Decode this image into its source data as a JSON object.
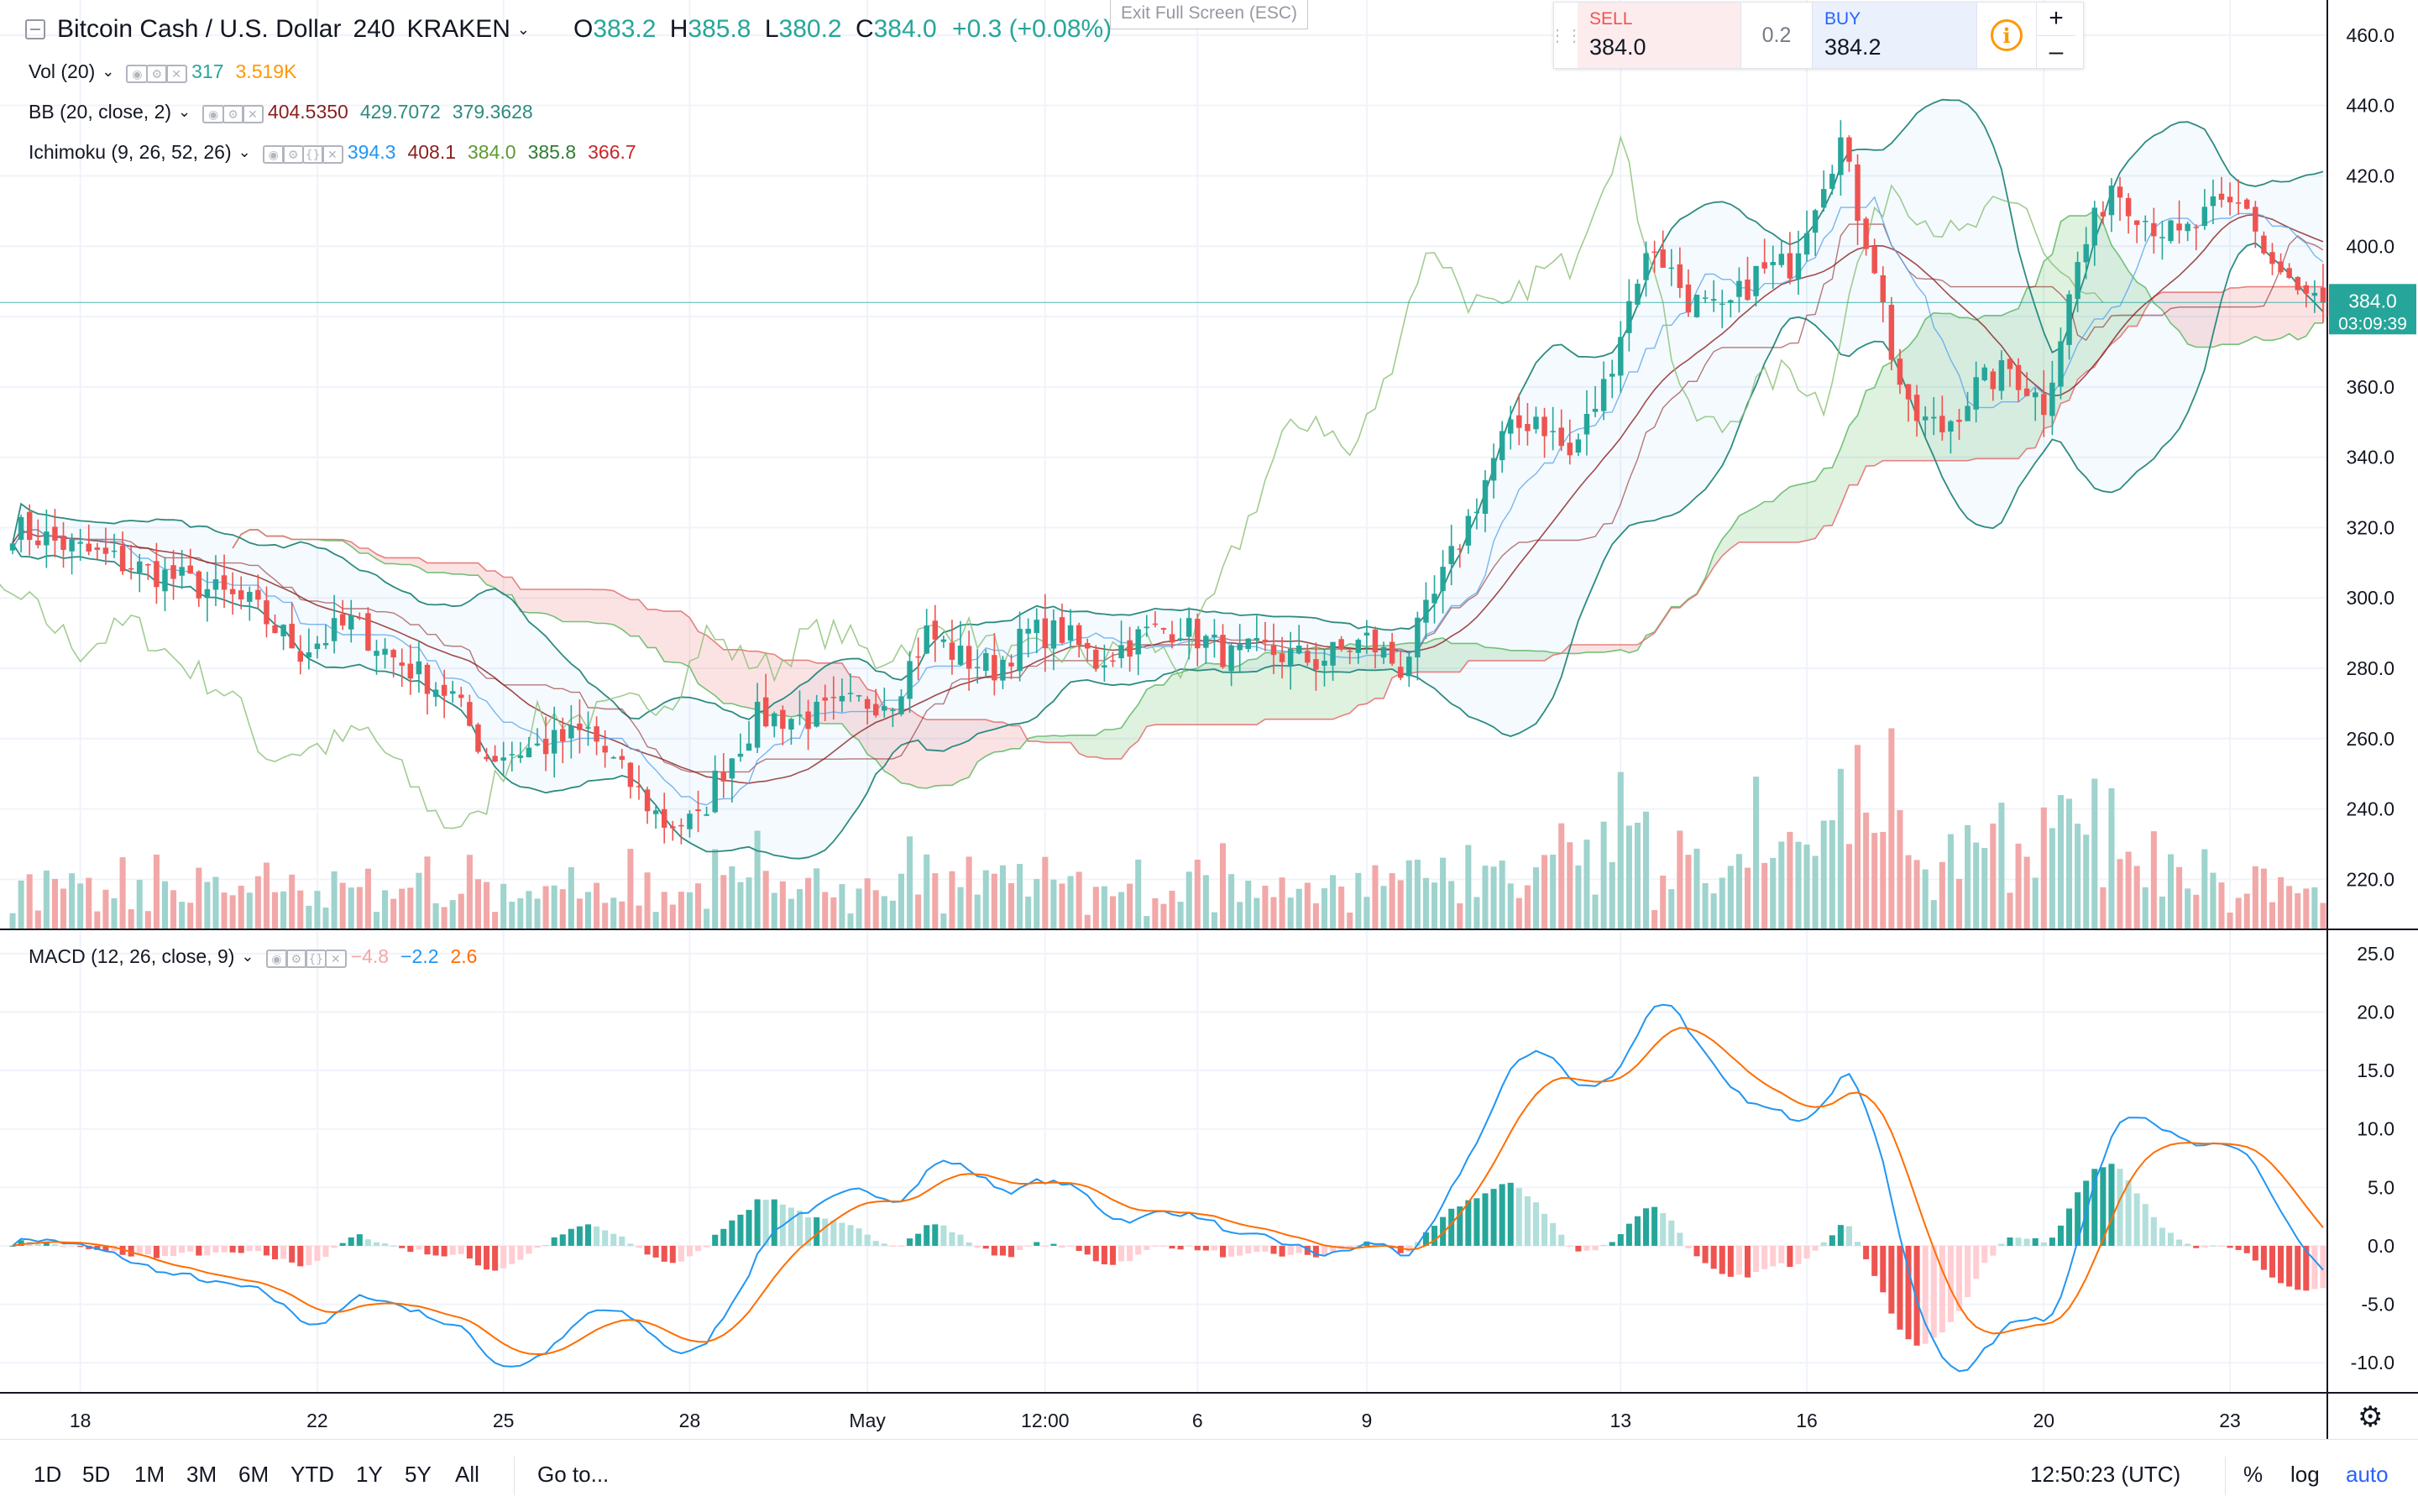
{
  "header": {
    "symbol": "Bitcoin Cash / U.S. Dollar",
    "interval": "240",
    "exchange": "KRAKEN",
    "o_label": "O",
    "o": "383.2",
    "h_label": "H",
    "h": "385.8",
    "l_label": "L",
    "l": "380.2",
    "c_label": "C",
    "c": "384.0",
    "change": "+0.3 (+0.08%)"
  },
  "tooltip": "Exit Full Screen (ESC)",
  "trade": {
    "sell_label": "SELL",
    "sell": "384.0",
    "spread": "0.2",
    "buy_label": "BUY",
    "buy": "384.2",
    "plus": "+",
    "minus": "–"
  },
  "legends": {
    "vol": {
      "name": "Vol (20)",
      "v1": "317",
      "v2": "3.519K"
    },
    "bb": {
      "name": "BB (20, close, 2)",
      "v1": "404.5350",
      "v2": "429.7072",
      "v3": "379.3628"
    },
    "ichimoku": {
      "name": "Ichimoku (9, 26, 52, 26)",
      "v1": "394.3",
      "v2": "408.1",
      "v3": "384.0",
      "v4": "385.8",
      "v5": "366.7"
    },
    "macd": {
      "name": "MACD (12, 26, close, 9)",
      "v1": "−4.8",
      "v2": "−2.2",
      "v3": "2.6"
    }
  },
  "price_label": {
    "value": "384.0",
    "countdown": "03:09:39"
  },
  "bottom": {
    "ranges": [
      "1D",
      "5D",
      "1M",
      "3M",
      "6M",
      "YTD",
      "1Y",
      "5Y",
      "All"
    ],
    "goto": "Go to...",
    "time": "12:50:23 (UTC)",
    "percent": "%",
    "log": "log",
    "auto": "auto"
  },
  "colors": {
    "up": "#26a69a",
    "down": "#ef5350",
    "vol_up": "#9fd3cd",
    "vol_down": "#f2a8a8",
    "macd_line": "#2196f3",
    "signal_line": "#ff6d00",
    "bb": "#2e8b80",
    "tenkan": "#5aa4ea",
    "kijun": "#8b1f1f",
    "chikou": "#8bbf74",
    "accent": "#2962ff"
  },
  "chart_data": [
    {
      "type": "candlestick",
      "title": "Bitcoin Cash / U.S. Dollar, 240, KRAKEN",
      "ylim": [
        206,
        470
      ],
      "y_ticks": [
        "220.0",
        "240.0",
        "260.0",
        "280.0",
        "300.0",
        "320.0",
        "340.0",
        "360.0",
        "380.0",
        "400.0",
        "420.0",
        "440.0",
        "460.0"
      ],
      "x_ticks": [
        "18",
        "22",
        "25",
        "28",
        "May",
        "12:00",
        "6",
        "9",
        "13",
        "16",
        "20",
        "23"
      ],
      "last_price": 384.0,
      "anchors": [
        [
          0,
          320
        ],
        [
          10,
          312
        ],
        [
          20,
          305
        ],
        [
          28,
          298
        ],
        [
          34,
          285
        ],
        [
          40,
          293
        ],
        [
          45,
          283
        ],
        [
          52,
          272
        ],
        [
          56,
          255
        ],
        [
          63,
          258
        ],
        [
          68,
          262
        ],
        [
          72,
          250
        ],
        [
          77,
          236
        ],
        [
          81,
          236
        ],
        [
          83,
          248
        ],
        [
          88,
          266
        ],
        [
          94,
          266
        ],
        [
          100,
          270
        ],
        [
          104,
          272
        ],
        [
          108,
          290
        ],
        [
          112,
          283
        ],
        [
          116,
          280
        ],
        [
          120,
          290
        ],
        [
          124,
          290
        ],
        [
          128,
          282
        ],
        [
          134,
          290
        ],
        [
          138,
          292
        ],
        [
          144,
          283
        ],
        [
          148,
          285
        ],
        [
          154,
          282
        ],
        [
          160,
          288
        ],
        [
          164,
          280
        ],
        [
          168,
          300
        ],
        [
          172,
          322
        ],
        [
          176,
          345
        ],
        [
          180,
          352
        ],
        [
          184,
          340
        ],
        [
          188,
          360
        ],
        [
          192,
          392
        ],
        [
          194,
          400
        ],
        [
          198,
          385
        ],
        [
          202,
          380
        ],
        [
          206,
          392
        ],
        [
          210,
          395
        ],
        [
          214,
          420
        ],
        [
          216,
          430
        ],
        [
          218,
          410
        ],
        [
          220,
          395
        ],
        [
          222,
          370
        ],
        [
          224,
          352
        ],
        [
          228,
          348
        ],
        [
          232,
          360
        ],
        [
          236,
          365
        ],
        [
          240,
          355
        ],
        [
          244,
          395
        ],
        [
          248,
          418
        ],
        [
          252,
          408
        ],
        [
          256,
          402
        ],
        [
          260,
          410
        ],
        [
          264,
          412
        ],
        [
          266,
          398
        ],
        [
          268,
          392
        ],
        [
          270,
          386
        ],
        [
          273,
          384
        ]
      ],
      "volume": {
        "name": "Vol (20)",
        "last": [
          317,
          3519
        ]
      }
    },
    {
      "type": "line",
      "title": "MACD (12, 26, close, 9)",
      "ylim": [
        -12.5,
        27
      ],
      "y_ticks": [
        "-10.0",
        "-5.0",
        "0.0",
        "5.0",
        "10.0",
        "15.0",
        "20.0",
        "25.0"
      ],
      "series": [
        {
          "name": "MACD",
          "values_last": -2.2
        },
        {
          "name": "Signal",
          "values_last": 2.6
        },
        {
          "name": "Histogram",
          "values_last": -4.8
        }
      ]
    }
  ]
}
